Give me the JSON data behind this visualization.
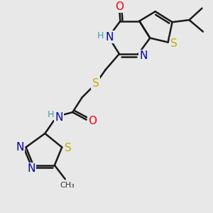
{
  "bg_color": "#e8e8e8",
  "bond_color": "#1a1a1a",
  "atom_colors": {
    "O": "#ff0000",
    "N": "#0000cc",
    "S": "#ccaa00",
    "H": "#4a9a9a",
    "C": "#1a1a1a"
  },
  "bond_width": 1.8,
  "font_size": 10,
  "dbo": 0.12
}
